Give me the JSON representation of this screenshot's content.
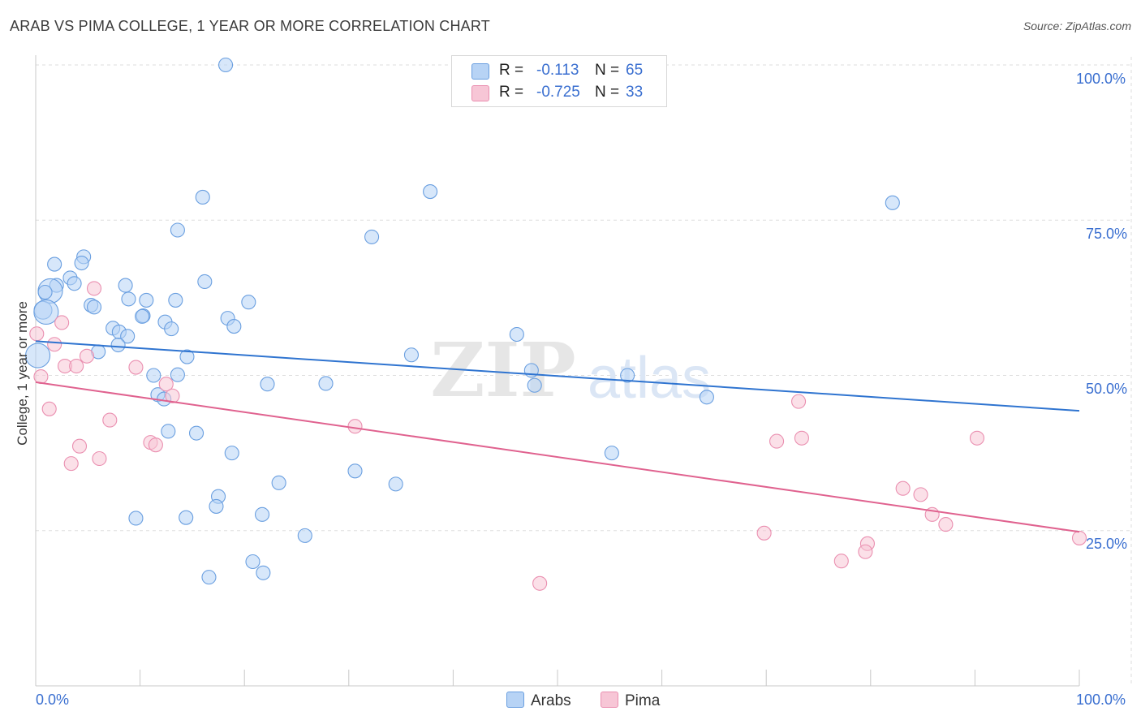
{
  "header": {
    "title": "ARAB VS PIMA COLLEGE, 1 YEAR OR MORE CORRELATION CHART",
    "source": "Source: ZipAtlas.com"
  },
  "legend": {
    "arabs": {
      "r_label": "R =",
      "r_value": "-0.113",
      "n_label": "N =",
      "n_value": "65"
    },
    "pima": {
      "r_label": "R =",
      "r_value": "-0.725",
      "n_label": "N =",
      "n_value": "33"
    }
  },
  "colors": {
    "arabs_fill": "#b7d3f5",
    "arabs_stroke": "#6a9fe0",
    "arabs_line": "#2f74d0",
    "pima_fill": "#f7c6d6",
    "pima_stroke": "#ea8fb0",
    "pima_line": "#e0628f",
    "axis_text": "#3a6fd0",
    "grid": "#dddddd"
  },
  "watermark": {
    "zip": "ZIP",
    "atlas": "atlas"
  },
  "chart_data": {
    "type": "scatter",
    "title": "ARAB VS PIMA COLLEGE, 1 YEAR OR MORE CORRELATION CHART",
    "xlabel": "",
    "ylabel": "College, 1 year or more",
    "xlim": [
      0,
      100
    ],
    "ylim": [
      0,
      100
    ],
    "x_tick_labels": [
      "0.0%",
      "100.0%"
    ],
    "y_ticks": [
      25,
      50,
      75,
      100
    ],
    "y_tick_labels": [
      "25.0%",
      "50.0%",
      "75.0%",
      "100.0%"
    ],
    "legend_position": "bottom-center",
    "series": [
      {
        "name": "Arabs",
        "r": -0.113,
        "n": 65,
        "trend": {
          "x": [
            0,
            100
          ],
          "y": [
            55.5,
            44.3
          ]
        },
        "points": [
          [
            18.2,
            100
          ],
          [
            37.8,
            79.6
          ],
          [
            16.0,
            78.7
          ],
          [
            82.1,
            77.8
          ],
          [
            13.6,
            73.4
          ],
          [
            32.2,
            72.3
          ],
          [
            4.6,
            69.1
          ],
          [
            4.4,
            68.1
          ],
          [
            1.8,
            67.9
          ],
          [
            3.3,
            65.7
          ],
          [
            16.2,
            65.1
          ],
          [
            3.7,
            64.8
          ],
          [
            8.6,
            64.5
          ],
          [
            2.0,
            64.5
          ],
          [
            1.4,
            63.6
          ],
          [
            0.9,
            63.4
          ],
          [
            8.9,
            62.3
          ],
          [
            10.6,
            62.1
          ],
          [
            13.4,
            62.1
          ],
          [
            20.4,
            61.8
          ],
          [
            5.3,
            61.3
          ],
          [
            5.6,
            61.0
          ],
          [
            0.7,
            60.5
          ],
          [
            10.3,
            59.6
          ],
          [
            10.2,
            59.5
          ],
          [
            18.4,
            59.2
          ],
          [
            12.4,
            58.6
          ],
          [
            19.0,
            57.9
          ],
          [
            7.4,
            57.6
          ],
          [
            13.0,
            57.5
          ],
          [
            8.0,
            57.0
          ],
          [
            8.8,
            56.3
          ],
          [
            46.1,
            56.6
          ],
          [
            7.9,
            54.9
          ],
          [
            6.0,
            53.8
          ],
          [
            0.2,
            53.2
          ],
          [
            36.0,
            53.3
          ],
          [
            14.5,
            53.0
          ],
          [
            47.5,
            50.8
          ],
          [
            11.3,
            50.0
          ],
          [
            13.6,
            50.1
          ],
          [
            56.7,
            50.0
          ],
          [
            27.8,
            48.7
          ],
          [
            22.2,
            48.6
          ],
          [
            47.8,
            48.4
          ],
          [
            11.7,
            46.9
          ],
          [
            12.3,
            46.2
          ],
          [
            64.3,
            46.5
          ],
          [
            12.7,
            41.0
          ],
          [
            15.4,
            40.7
          ],
          [
            18.8,
            37.5
          ],
          [
            30.6,
            34.6
          ],
          [
            23.3,
            32.7
          ],
          [
            34.5,
            32.5
          ],
          [
            17.5,
            30.5
          ],
          [
            17.3,
            28.9
          ],
          [
            21.7,
            27.6
          ],
          [
            9.6,
            27.0
          ],
          [
            14.4,
            27.1
          ],
          [
            25.8,
            24.2
          ],
          [
            20.8,
            20.0
          ],
          [
            21.8,
            18.2
          ],
          [
            16.6,
            17.5
          ],
          [
            55.2,
            37.5
          ],
          [
            1.0,
            60.2
          ]
        ]
      },
      {
        "name": "Pima",
        "r": -0.725,
        "n": 33,
        "trend": {
          "x": [
            0,
            100
          ],
          "y": [
            48.9,
            24.8
          ]
        },
        "points": [
          [
            0.1,
            56.7
          ],
          [
            1.8,
            55.0
          ],
          [
            2.5,
            58.5
          ],
          [
            5.6,
            64.0
          ],
          [
            4.9,
            53.1
          ],
          [
            2.8,
            51.5
          ],
          [
            3.9,
            51.5
          ],
          [
            9.6,
            51.3
          ],
          [
            0.5,
            49.8
          ],
          [
            12.5,
            48.6
          ],
          [
            13.1,
            46.7
          ],
          [
            1.3,
            44.6
          ],
          [
            7.1,
            42.8
          ],
          [
            30.6,
            41.8
          ],
          [
            11.0,
            39.2
          ],
          [
            11.5,
            38.8
          ],
          [
            4.2,
            38.6
          ],
          [
            6.1,
            36.6
          ],
          [
            3.4,
            35.8
          ],
          [
            73.1,
            45.8
          ],
          [
            71.0,
            39.4
          ],
          [
            73.4,
            39.9
          ],
          [
            90.2,
            39.9
          ],
          [
            83.1,
            31.8
          ],
          [
            84.8,
            30.8
          ],
          [
            85.9,
            27.6
          ],
          [
            87.2,
            26.0
          ],
          [
            69.8,
            24.6
          ],
          [
            79.7,
            22.9
          ],
          [
            79.5,
            21.6
          ],
          [
            77.2,
            20.1
          ],
          [
            48.3,
            16.5
          ],
          [
            100,
            23.8
          ]
        ]
      }
    ]
  },
  "bottom_legend": {
    "arabs_label": "Arabs",
    "pima_label": "Pima"
  }
}
